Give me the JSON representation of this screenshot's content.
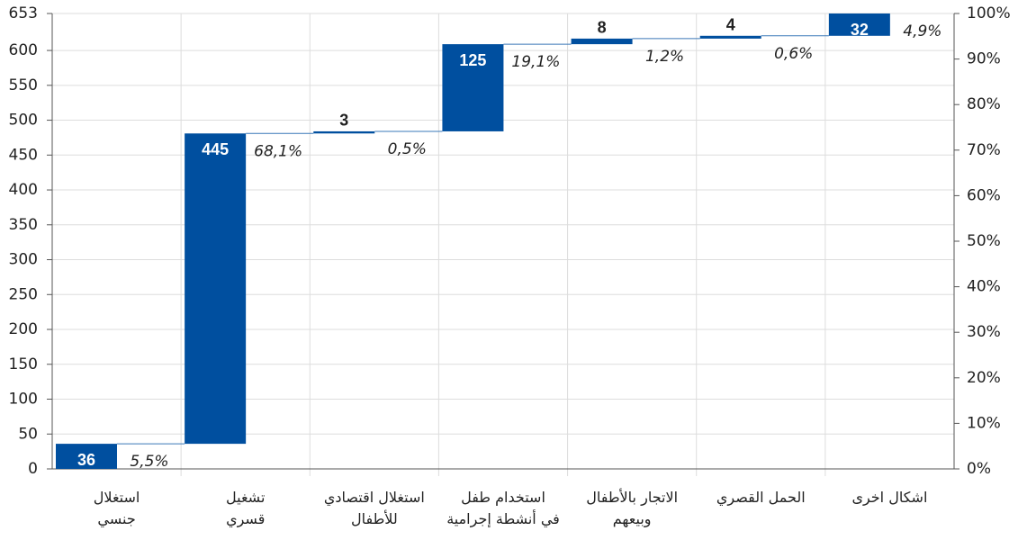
{
  "chart_data": {
    "type": "waterfall",
    "categories": [
      "استغلال\nجنسي",
      "تشغيل\nقسري",
      "استغلال اقتصادي\nللأطفال",
      "استخدام طفل\nفي أنشطة إجرامية",
      "الاتجار بالأطفال\nوبيعهم",
      "الحمل القصري",
      "اشكال اخرى"
    ],
    "values": [
      36,
      445,
      3,
      125,
      8,
      4,
      32
    ],
    "shares": [
      {
        "value": 5.5,
        "label": "5,5%"
      },
      {
        "value": 68.1,
        "label": "68,1%"
      },
      {
        "value": 0.5,
        "label": "0,5%"
      },
      {
        "value": 19.1,
        "label": "19,1%"
      },
      {
        "value": 1.2,
        "label": "1,2%"
      },
      {
        "value": 0.6,
        "label": "0,6%"
      },
      {
        "value": 4.9,
        "label": "4,9%"
      }
    ],
    "color": "#004f9f",
    "ylim": [
      0,
      653
    ],
    "yticks": [
      0,
      50,
      100,
      150,
      200,
      250,
      300,
      350,
      400,
      450,
      500,
      550,
      600,
      653
    ],
    "y2lim": [
      0,
      100
    ],
    "y2ticks": [
      {
        "value": 0,
        "label": "0%"
      },
      {
        "value": 10,
        "label": "10%"
      },
      {
        "value": 20,
        "label": "20%"
      },
      {
        "value": 30,
        "label": "30%"
      },
      {
        "value": 40,
        "label": "40%"
      },
      {
        "value": 50,
        "label": "50%"
      },
      {
        "value": 60,
        "label": "60%"
      },
      {
        "value": 70,
        "label": "70%"
      },
      {
        "value": 80,
        "label": "80%"
      },
      {
        "value": 90,
        "label": "90%"
      },
      {
        "value": 100,
        "label": "100%"
      }
    ],
    "grid": true
  }
}
